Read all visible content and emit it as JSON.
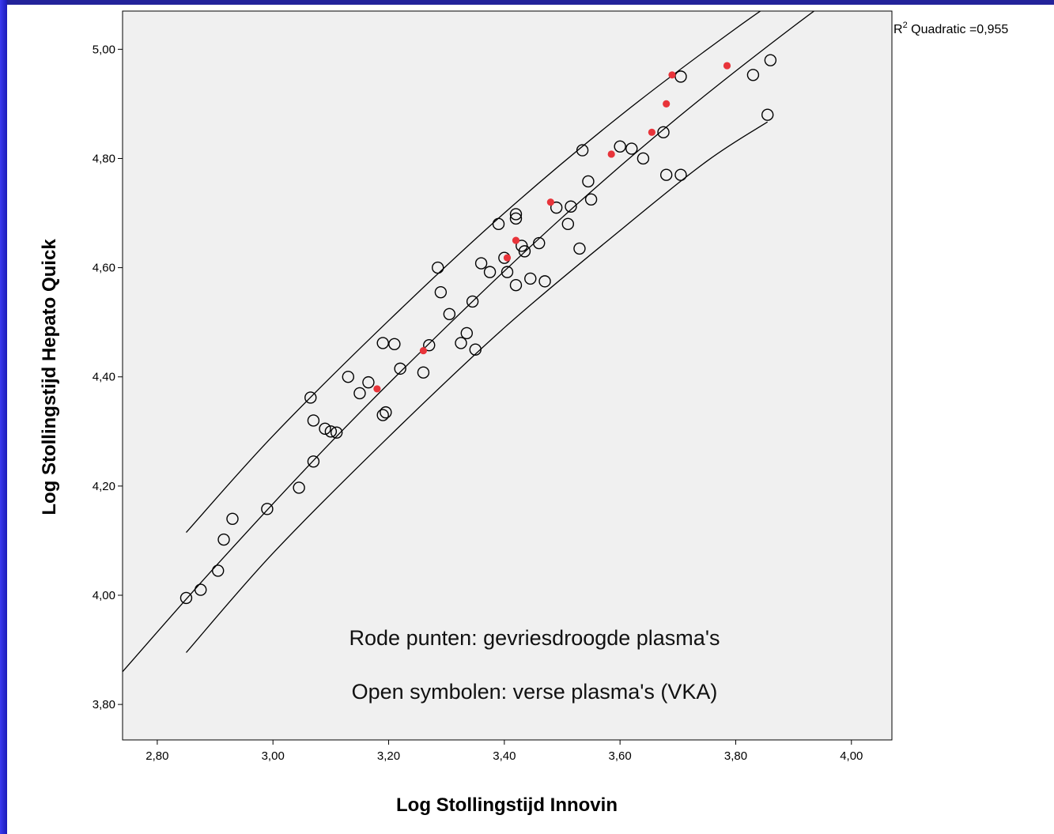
{
  "colors": {
    "background_border": "#2525c8",
    "plot_area": "#f0f0f0",
    "fresh_marker": "#000000",
    "freeze_dried_marker": "#e8343a",
    "curve": "#000000"
  },
  "chart_data": {
    "type": "scatter",
    "xlabel": "Log Stollingstijd Innovin",
    "ylabel": "Log Stollingstijd Hepato Quick",
    "xlim": [
      2.74,
      4.07
    ],
    "ylim": [
      3.735,
      5.07
    ],
    "xticks": [
      "2,80",
      "3,00",
      "3,20",
      "3,40",
      "3,60",
      "3,80",
      "4,00"
    ],
    "xtick_values": [
      2.8,
      3.0,
      3.2,
      3.4,
      3.6,
      3.8,
      4.0
    ],
    "yticks": [
      "3,80",
      "4,00",
      "4,20",
      "4,40",
      "4,60",
      "4,80",
      "5,00"
    ],
    "ytick_values": [
      3.8,
      4.0,
      4.2,
      4.4,
      4.6,
      4.8,
      5.0
    ],
    "grid": false,
    "fit_label": "R² Quadratic =0,955",
    "annotations": [
      "Rode punten: gevriesdroogde plasma's",
      "Open symbolen: verse plasma's (VKA)"
    ],
    "series": [
      {
        "marker": "open-circle",
        "points": [
          [
            2.85,
            3.995
          ],
          [
            2.875,
            4.01
          ],
          [
            2.905,
            4.045
          ],
          [
            2.915,
            4.102
          ],
          [
            2.93,
            4.14
          ],
          [
            2.99,
            4.158
          ],
          [
            3.045,
            4.197
          ],
          [
            3.065,
            4.362
          ],
          [
            3.07,
            4.32
          ],
          [
            3.07,
            4.245
          ],
          [
            3.09,
            4.305
          ],
          [
            3.1,
            4.3
          ],
          [
            3.11,
            4.298
          ],
          [
            3.13,
            4.4
          ],
          [
            3.15,
            4.37
          ],
          [
            3.165,
            4.39
          ],
          [
            3.19,
            4.33
          ],
          [
            3.19,
            4.462
          ],
          [
            3.195,
            4.335
          ],
          [
            3.21,
            4.46
          ],
          [
            3.22,
            4.415
          ],
          [
            3.26,
            4.408
          ],
          [
            3.27,
            4.458
          ],
          [
            3.285,
            4.6
          ],
          [
            3.29,
            4.555
          ],
          [
            3.305,
            4.515
          ],
          [
            3.325,
            4.462
          ],
          [
            3.335,
            4.48
          ],
          [
            3.345,
            4.538
          ],
          [
            3.35,
            4.45
          ],
          [
            3.36,
            4.608
          ],
          [
            3.375,
            4.592
          ],
          [
            3.39,
            4.68
          ],
          [
            3.4,
            4.618
          ],
          [
            3.405,
            4.592
          ],
          [
            3.42,
            4.568
          ],
          [
            3.42,
            4.69
          ],
          [
            3.42,
            4.698
          ],
          [
            3.43,
            4.64
          ],
          [
            3.435,
            4.63
          ],
          [
            3.445,
            4.58
          ],
          [
            3.46,
            4.645
          ],
          [
            3.47,
            4.575
          ],
          [
            3.49,
            4.71
          ],
          [
            3.51,
            4.68
          ],
          [
            3.515,
            4.712
          ],
          [
            3.53,
            4.635
          ],
          [
            3.535,
            4.815
          ],
          [
            3.545,
            4.758
          ],
          [
            3.55,
            4.725
          ],
          [
            3.6,
            4.822
          ],
          [
            3.62,
            4.818
          ],
          [
            3.64,
            4.8
          ],
          [
            3.675,
            4.848
          ],
          [
            3.68,
            4.77
          ],
          [
            3.705,
            4.95
          ],
          [
            3.705,
            4.77
          ],
          [
            3.83,
            4.953
          ],
          [
            3.855,
            4.88
          ],
          [
            3.86,
            4.98
          ]
        ]
      },
      {
        "marker": "filled-dot-red",
        "points": [
          [
            3.18,
            4.378
          ],
          [
            3.26,
            4.448
          ],
          [
            3.405,
            4.618
          ],
          [
            3.42,
            4.65
          ],
          [
            3.48,
            4.72
          ],
          [
            3.585,
            4.808
          ],
          [
            3.655,
            4.848
          ],
          [
            3.68,
            4.9
          ],
          [
            3.69,
            4.953
          ],
          [
            3.785,
            4.97
          ]
        ]
      }
    ],
    "fit_curves": [
      {
        "role": "upper-bound",
        "points": [
          [
            2.85,
            4.115
          ],
          [
            3.0,
            4.292
          ],
          [
            3.2,
            4.503
          ],
          [
            3.4,
            4.7
          ],
          [
            3.6,
            4.878
          ],
          [
            3.8,
            5.038
          ],
          [
            3.96,
            5.155
          ]
        ]
      },
      {
        "role": "fit",
        "points": [
          [
            2.74,
            3.86
          ],
          [
            2.9,
            4.052
          ],
          [
            3.1,
            4.28
          ],
          [
            3.3,
            4.492
          ],
          [
            3.5,
            4.692
          ],
          [
            3.7,
            4.875
          ],
          [
            3.9,
            5.042
          ],
          [
            4.07,
            5.173
          ]
        ]
      },
      {
        "role": "lower-bound",
        "points": [
          [
            2.85,
            3.895
          ],
          [
            3.0,
            4.077
          ],
          [
            3.2,
            4.29
          ],
          [
            3.4,
            4.49
          ],
          [
            3.6,
            4.668
          ],
          [
            3.75,
            4.795
          ],
          [
            3.855,
            4.867
          ]
        ]
      }
    ]
  }
}
